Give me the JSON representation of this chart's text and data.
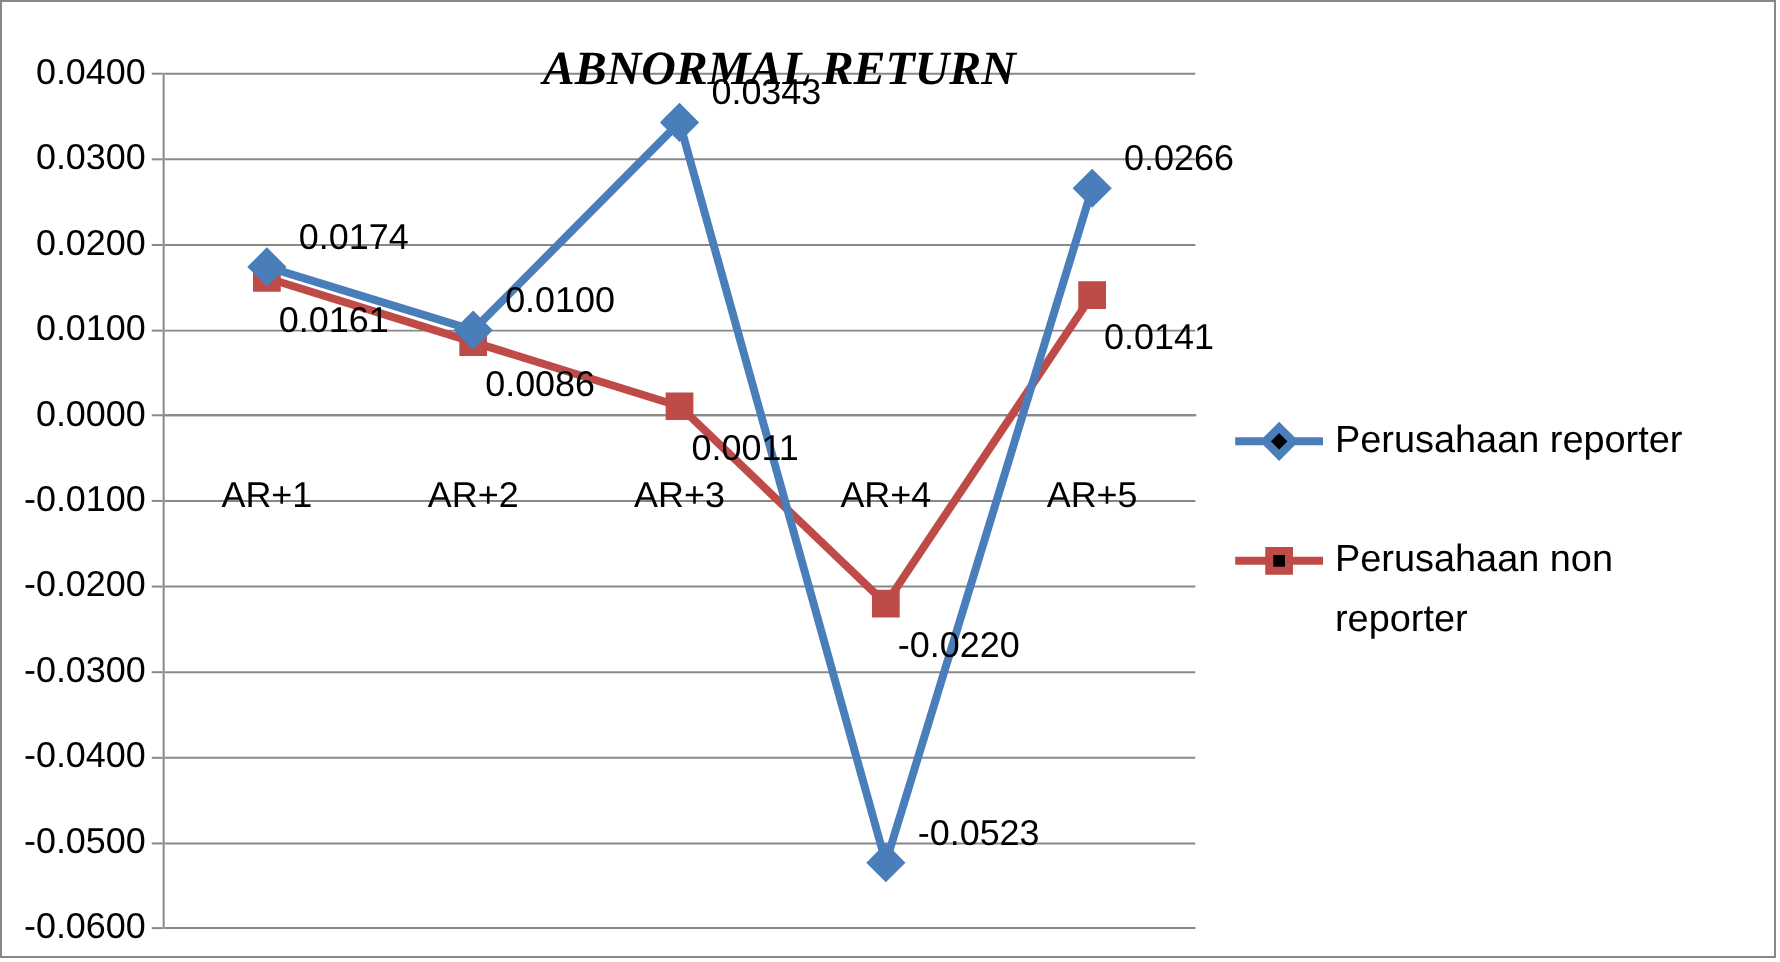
{
  "chart_data": {
    "type": "line",
    "title": "ABNORMAL RETURN",
    "categories": [
      "AR+1",
      "AR+2",
      "AR+3",
      "AR+4",
      "AR+5"
    ],
    "series": [
      {
        "name": "Perusahaan reporter",
        "color": "#4a7ebb",
        "marker": "diamond",
        "values": [
          0.0174,
          0.01,
          0.0343,
          -0.0523,
          0.0266
        ],
        "value_labels": [
          "0.0174",
          "0.0100",
          "0.0343",
          "-0.0523",
          "0.0266"
        ]
      },
      {
        "name": "Perusahaan non reporter",
        "color": "#be4b48",
        "marker": "square",
        "values": [
          0.0161,
          0.0086,
          0.0011,
          -0.022,
          0.0141
        ],
        "value_labels": [
          "0.0161",
          "0.0086",
          "0.0011",
          "-0.0220",
          "0.0141"
        ]
      }
    ],
    "ylim": [
      -0.06,
      0.04
    ],
    "yticks": [
      {
        "value": 0.04,
        "label": "0.0400"
      },
      {
        "value": 0.03,
        "label": "0.0300"
      },
      {
        "value": 0.02,
        "label": "0.0200"
      },
      {
        "value": 0.01,
        "label": "0.0100"
      },
      {
        "value": 0,
        "label": "0.0000"
      },
      {
        "value": -0.01,
        "label": "-0.0100"
      },
      {
        "value": -0.02,
        "label": "-0.0200"
      },
      {
        "value": -0.03,
        "label": "-0.0300"
      },
      {
        "value": -0.04,
        "label": "-0.0400"
      },
      {
        "value": -0.05,
        "label": "-0.0500"
      },
      {
        "value": -0.06,
        "label": "-0.0600"
      }
    ],
    "grid": "y",
    "legend": "right",
    "line_style": "solid"
  }
}
